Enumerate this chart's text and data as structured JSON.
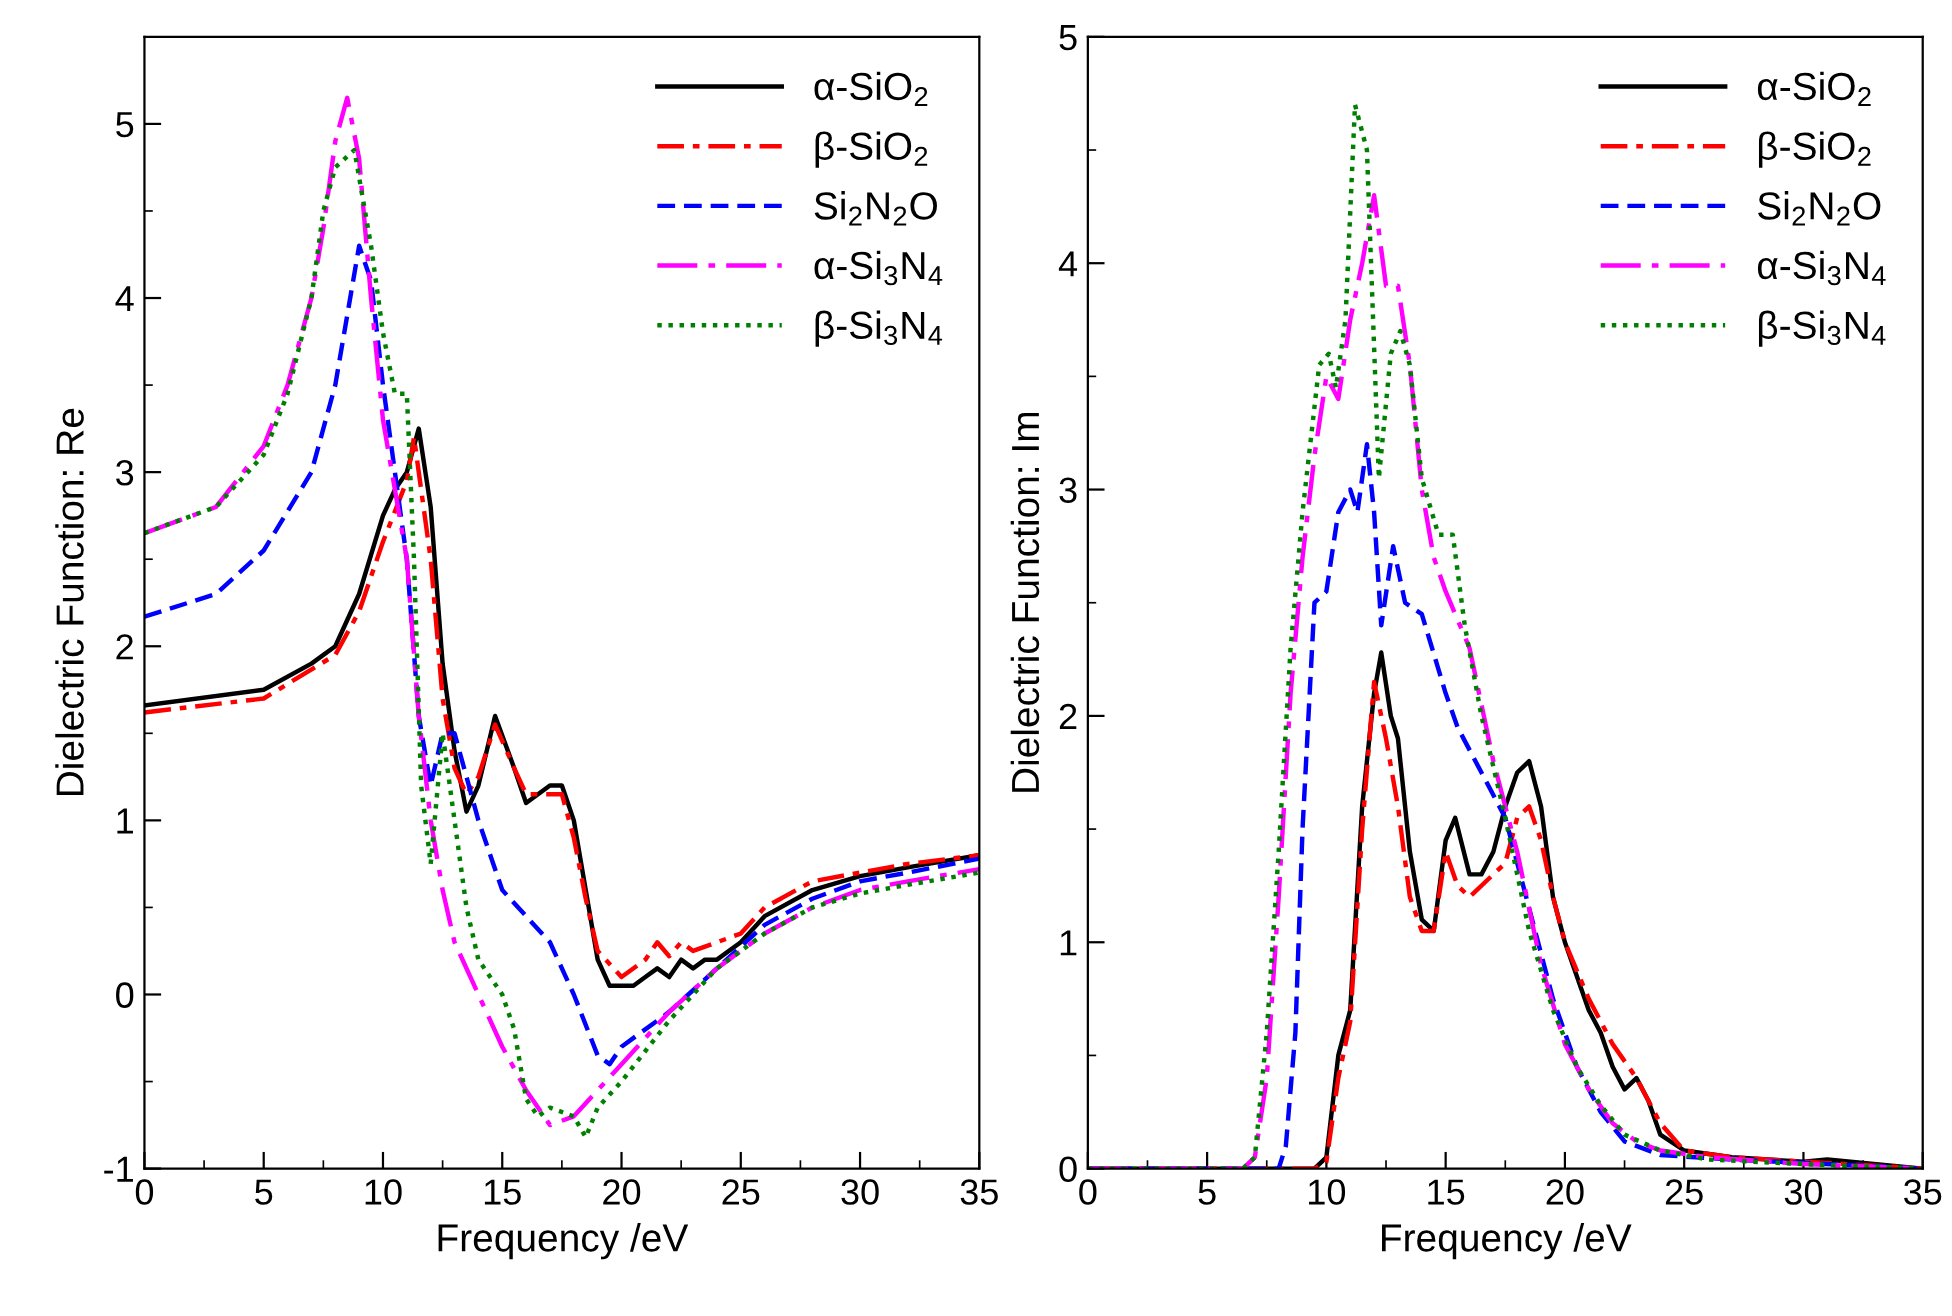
{
  "chart_data": [
    {
      "type": "line",
      "xlabel": "Frequency /eV",
      "ylabel": "Dielectric Function: Re",
      "xlim": [
        0,
        35
      ],
      "ylim": [
        -1,
        5.5
      ],
      "xticks": [
        0,
        5,
        10,
        15,
        20,
        25,
        30,
        35
      ],
      "yticks": [
        -1,
        0,
        1,
        2,
        3,
        4,
        5
      ],
      "legend": "top right",
      "grid": false,
      "series": [
        {
          "name": "α-SiO$_{2}$",
          "color": "#000000",
          "line_style": "solid",
          "x": [
            0,
            5,
            7,
            8,
            9,
            10,
            10.5,
            11,
            11.5,
            12,
            12.5,
            13,
            13.5,
            14,
            14.7,
            15.5,
            16,
            16.5,
            17,
            17.5,
            18,
            18.5,
            19,
            19.5,
            20,
            20.5,
            21,
            21.5,
            22,
            22.5,
            23,
            23.5,
            24,
            25,
            26,
            28,
            30,
            32,
            35
          ],
          "values": [
            1.66,
            1.75,
            1.9,
            2.0,
            2.3,
            2.75,
            2.9,
            3.0,
            3.25,
            2.8,
            1.9,
            1.4,
            1.05,
            1.2,
            1.6,
            1.3,
            1.1,
            1.15,
            1.2,
            1.2,
            1.0,
            0.6,
            0.2,
            0.05,
            0.05,
            0.05,
            0.1,
            0.15,
            0.1,
            0.2,
            0.15,
            0.2,
            0.2,
            0.3,
            0.45,
            0.6,
            0.68,
            0.73,
            0.8
          ]
        },
        {
          "name": "β-SiO$_{2}$",
          "color": "#ff0000",
          "line_style": "dashdot",
          "x": [
            0,
            5,
            8,
            9,
            10,
            11,
            11.3,
            12,
            12.5,
            13,
            13.5,
            14,
            14.7,
            15.5,
            16,
            17,
            17.5,
            18,
            18.5,
            19,
            20,
            21,
            21.5,
            22,
            22.5,
            23,
            24,
            25,
            26,
            28,
            30,
            32,
            35
          ],
          "values": [
            1.62,
            1.7,
            1.95,
            2.2,
            2.6,
            2.95,
            3.2,
            2.5,
            1.7,
            1.3,
            1.15,
            1.25,
            1.55,
            1.3,
            1.15,
            1.15,
            1.15,
            0.9,
            0.55,
            0.25,
            0.1,
            0.2,
            0.3,
            0.22,
            0.3,
            0.25,
            0.3,
            0.35,
            0.5,
            0.65,
            0.7,
            0.75,
            0.8
          ]
        },
        {
          "name": "Si$_{2}$N$_{2}$O",
          "color": "#0000ff",
          "line_style": "dashed",
          "x": [
            0,
            3,
            5,
            7,
            8,
            8.5,
            9,
            9.5,
            10,
            10.5,
            11,
            11.5,
            12,
            12.5,
            13,
            14,
            15,
            16,
            17,
            18,
            19,
            19.5,
            20,
            22,
            24,
            26,
            28,
            30,
            32,
            35
          ],
          "values": [
            2.17,
            2.3,
            2.55,
            3.0,
            3.5,
            3.9,
            4.3,
            4.1,
            3.5,
            3.0,
            2.5,
            1.6,
            1.2,
            1.5,
            1.5,
            1.0,
            0.6,
            0.45,
            0.3,
            0.0,
            -0.35,
            -0.4,
            -0.3,
            -0.1,
            0.15,
            0.4,
            0.55,
            0.65,
            0.7,
            0.78
          ]
        },
        {
          "name": "α-Si$_{3}$N$_{4}$",
          "color": "#ff00ff",
          "line_style": "longdashdot",
          "x": [
            0,
            3,
            5,
            6,
            7,
            7.5,
            8,
            8.5,
            9,
            9.5,
            10,
            10.5,
            11,
            11.5,
            12,
            12.5,
            13,
            14,
            15,
            16,
            17,
            18,
            19,
            20,
            22,
            24,
            26,
            28,
            30,
            32,
            35
          ],
          "values": [
            2.65,
            2.8,
            3.15,
            3.5,
            4.0,
            4.4,
            4.9,
            5.15,
            4.8,
            4.0,
            3.3,
            2.9,
            2.5,
            1.6,
            1.0,
            0.6,
            0.3,
            0.0,
            -0.3,
            -0.55,
            -0.75,
            -0.7,
            -0.55,
            -0.4,
            -0.1,
            0.15,
            0.35,
            0.5,
            0.6,
            0.65,
            0.72
          ]
        },
        {
          "name": "β-Si$_{3}$N$_{4}$",
          "color": "#008000",
          "line_style": "dotted",
          "x": [
            0,
            3,
            5,
            6,
            7,
            7.5,
            8,
            8.8,
            9.5,
            10,
            10.5,
            11,
            11.3,
            11.6,
            12,
            12.5,
            13,
            13.5,
            14,
            15,
            15.5,
            16,
            16.5,
            17,
            18,
            18.5,
            19,
            20,
            22,
            24,
            26,
            28,
            30,
            32,
            35
          ],
          "values": [
            2.65,
            2.8,
            3.1,
            3.45,
            4.0,
            4.5,
            4.75,
            4.85,
            4.3,
            3.8,
            3.45,
            3.45,
            2.5,
            1.2,
            0.75,
            1.5,
            1.0,
            0.5,
            0.2,
            0.0,
            -0.2,
            -0.6,
            -0.7,
            -0.65,
            -0.7,
            -0.82,
            -0.65,
            -0.5,
            -0.15,
            0.15,
            0.35,
            0.5,
            0.58,
            0.63,
            0.7
          ]
        }
      ]
    },
    {
      "type": "line",
      "xlabel": "Frequency /eV",
      "ylabel": "Dielectric Function: Im",
      "xlim": [
        0,
        35
      ],
      "ylim": [
        0,
        5
      ],
      "xticks": [
        0,
        5,
        10,
        15,
        20,
        25,
        30,
        35
      ],
      "yticks": [
        0,
        1,
        2,
        3,
        4,
        5
      ],
      "legend": "top right",
      "grid": false,
      "series": [
        {
          "name": "α-SiO$_{2}$",
          "color": "#000000",
          "line_style": "solid",
          "x": [
            0,
            9.5,
            10,
            10.5,
            11,
            11.5,
            12,
            12.3,
            12.7,
            13,
            13.5,
            14,
            14.5,
            15,
            15.4,
            16,
            16.5,
            17,
            17.5,
            18,
            18.5,
            19,
            19.5,
            20,
            21,
            21.5,
            22,
            22.5,
            23,
            23.5,
            24,
            25,
            27,
            30,
            31,
            35
          ],
          "values": [
            0,
            0,
            0.05,
            0.5,
            0.7,
            1.6,
            2.1,
            2.28,
            2.0,
            1.9,
            1.4,
            1.1,
            1.05,
            1.45,
            1.55,
            1.3,
            1.3,
            1.4,
            1.6,
            1.75,
            1.8,
            1.6,
            1.2,
            1.0,
            0.7,
            0.6,
            0.45,
            0.35,
            0.4,
            0.3,
            0.15,
            0.08,
            0.05,
            0.03,
            0.04,
            0
          ]
        },
        {
          "name": "β-SiO$_{2}$",
          "color": "#ff0000",
          "line_style": "dashdot",
          "x": [
            0,
            9.5,
            10,
            10.5,
            11,
            11.5,
            12,
            12.5,
            13,
            13.5,
            14,
            14.5,
            15,
            15.5,
            16,
            17,
            17.5,
            18,
            18.5,
            19,
            19.5,
            20,
            21,
            22,
            23,
            24,
            25,
            27,
            35
          ],
          "values": [
            0,
            0,
            0.03,
            0.4,
            0.65,
            1.5,
            2.15,
            1.9,
            1.6,
            1.2,
            1.05,
            1.05,
            1.4,
            1.25,
            1.2,
            1.3,
            1.35,
            1.55,
            1.6,
            1.45,
            1.2,
            1.0,
            0.75,
            0.55,
            0.4,
            0.2,
            0.08,
            0.05,
            0
          ]
        },
        {
          "name": "Si$_{2}$N$_{2}$O",
          "color": "#0000ff",
          "line_style": "dashed",
          "x": [
            0,
            8,
            8.3,
            8.7,
            9,
            9.5,
            10,
            10.5,
            11,
            11.3,
            11.7,
            12,
            12.3,
            12.8,
            13.3,
            14,
            15,
            15.5,
            16.5,
            17.5,
            18.5,
            19.5,
            20.5,
            21.5,
            22.5,
            24,
            27,
            35
          ],
          "values": [
            0,
            0,
            0.1,
            0.6,
            1.5,
            2.5,
            2.55,
            2.9,
            3.0,
            2.9,
            3.2,
            2.9,
            2.4,
            2.75,
            2.5,
            2.45,
            2.1,
            1.95,
            1.75,
            1.55,
            1.15,
            0.75,
            0.45,
            0.25,
            0.12,
            0.06,
            0.04,
            0
          ]
        },
        {
          "name": "α-Si$_{3}$N$_{4}$",
          "color": "#ff00ff",
          "line_style": "longdashdot",
          "x": [
            0,
            6.5,
            7,
            7.5,
            8,
            8.5,
            9,
            9.5,
            10,
            10.5,
            11,
            11.5,
            12,
            12.5,
            13,
            13.5,
            14,
            14.5,
            15,
            16,
            17,
            18,
            19,
            20,
            21,
            22,
            23,
            24,
            26,
            30,
            35
          ],
          "values": [
            0,
            0,
            0.05,
            0.4,
            1.2,
            2.1,
            2.7,
            3.15,
            3.5,
            3.4,
            3.75,
            4.0,
            4.3,
            3.9,
            3.9,
            3.55,
            3.0,
            2.7,
            2.55,
            2.3,
            1.8,
            1.4,
            0.9,
            0.55,
            0.35,
            0.2,
            0.12,
            0.08,
            0.05,
            0.02,
            0
          ]
        },
        {
          "name": "β-Si$_{3}$N$_{4}$",
          "color": "#008000",
          "line_style": "dotted",
          "x": [
            0,
            6.5,
            7,
            7.5,
            8,
            8.5,
            9,
            9.7,
            10.1,
            10.4,
            10.8,
            11.2,
            11.7,
            12.2,
            12.7,
            13.1,
            13.5,
            14,
            14.7,
            15.3,
            15.8,
            16.5,
            17.5,
            18.5,
            19.5,
            20.5,
            21.5,
            22.5,
            24,
            26,
            30,
            35
          ],
          "values": [
            0,
            0,
            0.05,
            0.6,
            1.4,
            2.3,
            2.9,
            3.55,
            3.6,
            3.45,
            3.75,
            4.7,
            4.5,
            3.05,
            3.6,
            3.7,
            3.55,
            3.05,
            2.8,
            2.8,
            2.4,
            2.0,
            1.55,
            1.05,
            0.7,
            0.45,
            0.28,
            0.15,
            0.08,
            0.04,
            0.02,
            0
          ]
        }
      ]
    }
  ]
}
